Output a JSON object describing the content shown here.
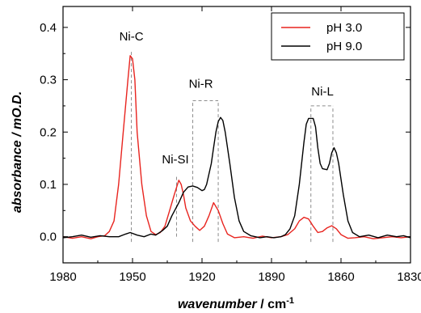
{
  "chart_data": {
    "type": "line",
    "xlabel_main": "wavenumber",
    "xlabel_unit": " / cm",
    "xlabel_exp": "-1",
    "ylabel": "absorbance / mO.D.",
    "xlim": [
      1980,
      1830
    ],
    "ylim": [
      -0.05,
      0.44
    ],
    "x_ticks": [
      1980,
      1950,
      1920,
      1890,
      1860,
      1830
    ],
    "y_ticks": [
      0.0,
      0.1,
      0.2,
      0.3,
      0.4
    ],
    "x_tick_labels": [
      "1980",
      "1950",
      "1920",
      "1890",
      "1860",
      "1830"
    ],
    "y_tick_labels": [
      "0.0",
      "0.1",
      "0.2",
      "0.3",
      "0.4"
    ],
    "series": [
      {
        "name": "pH 3.0",
        "color": "#e8241f",
        "points": [
          [
            1980,
            0.0
          ],
          [
            1976,
            -0.003
          ],
          [
            1972,
            0.0
          ],
          [
            1968,
            -0.004
          ],
          [
            1965,
            0.0
          ],
          [
            1962,
            0.002
          ],
          [
            1960,
            0.01
          ],
          [
            1958,
            0.03
          ],
          [
            1956,
            0.1
          ],
          [
            1954,
            0.2
          ],
          [
            1952,
            0.3
          ],
          [
            1951,
            0.346
          ],
          [
            1950,
            0.34
          ],
          [
            1949,
            0.3
          ],
          [
            1948,
            0.2
          ],
          [
            1946,
            0.1
          ],
          [
            1944,
            0.04
          ],
          [
            1942,
            0.01
          ],
          [
            1940,
            0.004
          ],
          [
            1938,
            0.008
          ],
          [
            1936,
            0.02
          ],
          [
            1934,
            0.05
          ],
          [
            1932,
            0.08
          ],
          [
            1930,
            0.108
          ],
          [
            1929,
            0.1
          ],
          [
            1928,
            0.08
          ],
          [
            1927,
            0.055
          ],
          [
            1925,
            0.03
          ],
          [
            1923,
            0.02
          ],
          [
            1921,
            0.012
          ],
          [
            1919,
            0.02
          ],
          [
            1917,
            0.04
          ],
          [
            1915,
            0.065
          ],
          [
            1913,
            0.05
          ],
          [
            1911,
            0.025
          ],
          [
            1909,
            0.005
          ],
          [
            1906,
            -0.002
          ],
          [
            1902,
            0.0
          ],
          [
            1898,
            -0.003
          ],
          [
            1894,
            0.001
          ],
          [
            1890,
            -0.002
          ],
          [
            1886,
            0.0
          ],
          [
            1883,
            0.004
          ],
          [
            1880,
            0.015
          ],
          [
            1878,
            0.03
          ],
          [
            1876,
            0.037
          ],
          [
            1874,
            0.034
          ],
          [
            1872,
            0.02
          ],
          [
            1870,
            0.008
          ],
          [
            1868,
            0.01
          ],
          [
            1866,
            0.017
          ],
          [
            1864,
            0.021
          ],
          [
            1862,
            0.015
          ],
          [
            1860,
            0.004
          ],
          [
            1857,
            -0.003
          ],
          [
            1854,
            -0.002
          ],
          [
            1850,
            0.0
          ],
          [
            1846,
            -0.004
          ],
          [
            1842,
            -0.002
          ],
          [
            1838,
            0.0
          ],
          [
            1834,
            -0.002
          ],
          [
            1830,
            0.0
          ]
        ]
      },
      {
        "name": "pH 9.0",
        "color": "#000000",
        "points": [
          [
            1980,
            -0.002
          ],
          [
            1976,
            0.0
          ],
          [
            1972,
            0.003
          ],
          [
            1968,
            -0.001
          ],
          [
            1964,
            0.002
          ],
          [
            1960,
            0.0
          ],
          [
            1956,
            0.0
          ],
          [
            1953,
            0.005
          ],
          [
            1951,
            0.008
          ],
          [
            1948,
            0.003
          ],
          [
            1945,
            0.0
          ],
          [
            1942,
            0.005
          ],
          [
            1940,
            0.003
          ],
          [
            1937,
            0.012
          ],
          [
            1935,
            0.02
          ],
          [
            1933,
            0.04
          ],
          [
            1930,
            0.065
          ],
          [
            1928,
            0.085
          ],
          [
            1926,
            0.095
          ],
          [
            1924,
            0.097
          ],
          [
            1922,
            0.094
          ],
          [
            1920,
            0.088
          ],
          [
            1919,
            0.09
          ],
          [
            1918,
            0.1
          ],
          [
            1916,
            0.14
          ],
          [
            1915,
            0.17
          ],
          [
            1914,
            0.2
          ],
          [
            1913,
            0.22
          ],
          [
            1912,
            0.228
          ],
          [
            1911,
            0.222
          ],
          [
            1910,
            0.2
          ],
          [
            1908,
            0.14
          ],
          [
            1906,
            0.075
          ],
          [
            1904,
            0.03
          ],
          [
            1902,
            0.01
          ],
          [
            1899,
            0.002
          ],
          [
            1895,
            -0.002
          ],
          [
            1892,
            0.0
          ],
          [
            1889,
            -0.002
          ],
          [
            1886,
            0.0
          ],
          [
            1884,
            0.004
          ],
          [
            1882,
            0.015
          ],
          [
            1880,
            0.04
          ],
          [
            1878,
            0.1
          ],
          [
            1876,
            0.18
          ],
          [
            1875,
            0.215
          ],
          [
            1874,
            0.226
          ],
          [
            1872,
            0.226
          ],
          [
            1871,
            0.21
          ],
          [
            1870,
            0.17
          ],
          [
            1869,
            0.14
          ],
          [
            1868,
            0.13
          ],
          [
            1866,
            0.128
          ],
          [
            1865,
            0.14
          ],
          [
            1864,
            0.16
          ],
          [
            1863,
            0.17
          ],
          [
            1862,
            0.16
          ],
          [
            1861,
            0.14
          ],
          [
            1859,
            0.08
          ],
          [
            1857,
            0.03
          ],
          [
            1855,
            0.008
          ],
          [
            1852,
            0.0
          ],
          [
            1848,
            0.003
          ],
          [
            1844,
            -0.002
          ],
          [
            1840,
            0.003
          ],
          [
            1836,
            0.0
          ],
          [
            1833,
            0.002
          ],
          [
            1830,
            -0.002
          ]
        ]
      }
    ],
    "annotations": [
      {
        "text": "Ni-C",
        "x": 1950.5,
        "y": 0.375
      },
      {
        "text": "Ni-R",
        "x": 1920.5,
        "y": 0.285
      },
      {
        "text": "Ni-SI",
        "x": 1931.5,
        "y": 0.14
      },
      {
        "text": "Ni-L",
        "x": 1868.0,
        "y": 0.27
      }
    ],
    "reference_lines": [
      {
        "x": 1950.5,
        "y0": -0.01,
        "y1": 0.355
      },
      {
        "x": 1931.0,
        "y0": 0.0,
        "y1": 0.115
      },
      {
        "x": 1924.0,
        "y0": -0.01,
        "y1": 0.26
      },
      {
        "x": 1913.0,
        "y0": -0.01,
        "y1": 0.26
      },
      {
        "x": 1873.0,
        "y0": -0.01,
        "y1": 0.25
      },
      {
        "x": 1863.5,
        "y0": -0.01,
        "y1": 0.25
      }
    ],
    "brackets": [
      {
        "x0": 1924.0,
        "x1": 1913.0,
        "y": 0.26
      },
      {
        "x0": 1873.0,
        "x1": 1863.5,
        "y": 0.25
      }
    ],
    "legend": {
      "position": "top-right"
    }
  }
}
